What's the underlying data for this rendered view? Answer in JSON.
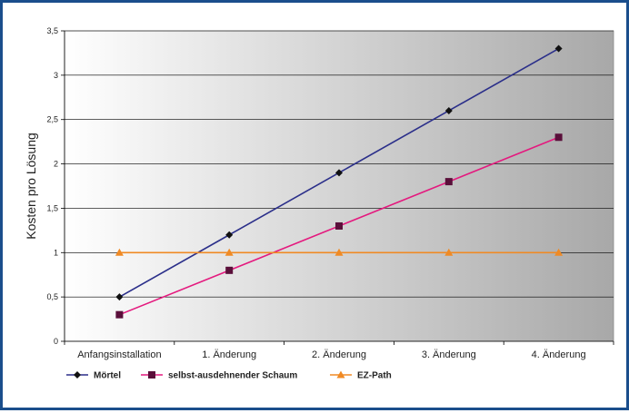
{
  "chart_data": {
    "type": "line",
    "title": "",
    "xlabel": "",
    "ylabel": "Kosten pro Lösung",
    "categories": [
      "Anfangsinstallation",
      "1. Änderung",
      "2. Änderung",
      "3. Änderung",
      "4. Änderung"
    ],
    "ylim": [
      0,
      3.5
    ],
    "yticks": [
      "0",
      "0,5",
      "1",
      "1,5",
      "2",
      "2,5",
      "3",
      "3,5"
    ],
    "yticks_values": [
      0,
      0.5,
      1,
      1.5,
      2,
      2.5,
      3,
      3.5
    ],
    "grid": true,
    "legend_position": "bottom",
    "series": [
      {
        "name": "Mörtel",
        "values": [
          0.5,
          1.2,
          1.9,
          2.6,
          3.3
        ],
        "color": "#2b2f8a",
        "marker": "diamond",
        "marker_color": "#111111"
      },
      {
        "name": "selbst-ausdehnender Schaum",
        "values": [
          0.3,
          0.8,
          1.3,
          1.8,
          2.3
        ],
        "color": "#e4197e",
        "marker": "square",
        "marker_color": "#5a0f3a"
      },
      {
        "name": "EZ-Path",
        "values": [
          1,
          1,
          1,
          1,
          1
        ],
        "color": "#f08a24",
        "marker": "triangle",
        "marker_color": "#f08a24"
      }
    ]
  }
}
